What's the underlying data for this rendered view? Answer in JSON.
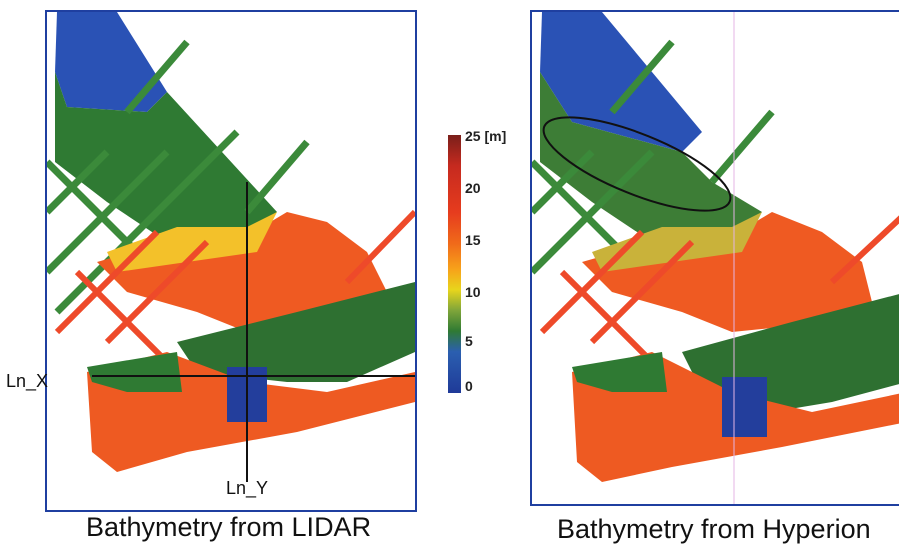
{
  "left_panel": {
    "caption": "Bathymetry from LIDAR",
    "line_x_label": "Ln_X",
    "line_y_label": "Ln_Y"
  },
  "right_panel": {
    "caption": "Bathymetry from Hyperion"
  },
  "colorbar": {
    "ticks": [
      "25 [m]",
      "20",
      "15",
      "10",
      "5",
      "0"
    ],
    "colors": {
      "deep": "#7a1f1a",
      "high": "#e63c1e",
      "mid": "#f7a21a",
      "low_mid": "#e8d51c",
      "shallow_green": "#2f7a33",
      "shallowest": "#1f3a98"
    }
  }
}
